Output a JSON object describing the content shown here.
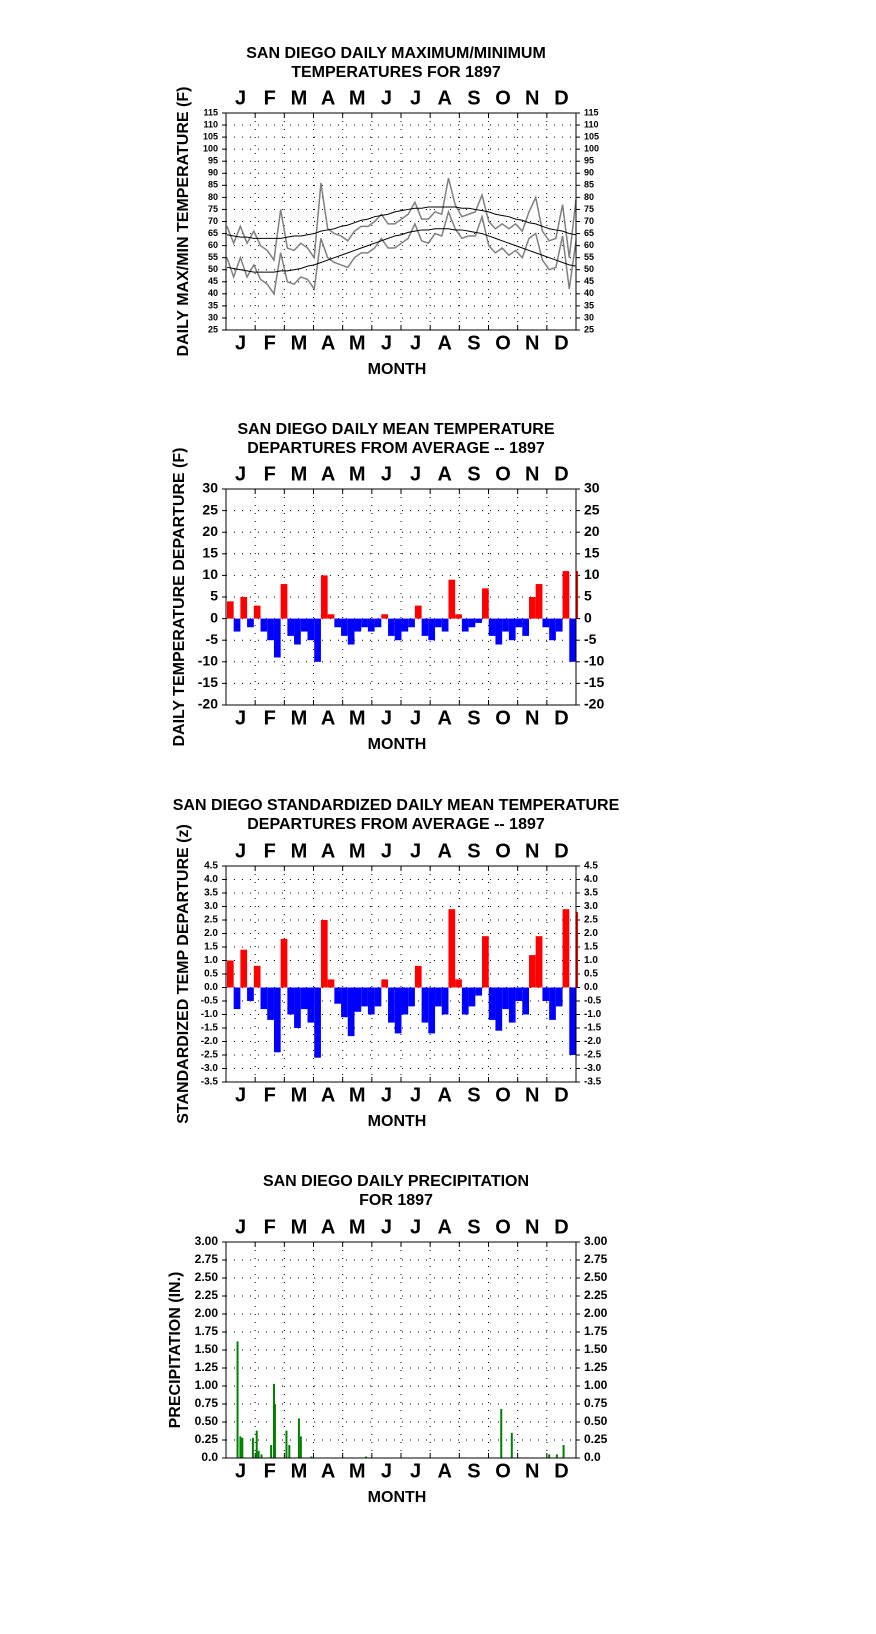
{
  "chart_data": [
    {
      "type": "line",
      "title": [
        "SAN DIEGO DAILY MAXIMUM/MINIMUM",
        "TEMPERATURES FOR 1897"
      ],
      "ylabel": "DAILY MAX/MIN TEMPERATURE (F)",
      "xlabel": "MONTH",
      "months": [
        "J",
        "F",
        "M",
        "A",
        "M",
        "J",
        "J",
        "A",
        "S",
        "O",
        "N",
        "D"
      ],
      "xlim": [
        0,
        365
      ],
      "x": [
        1,
        8,
        15,
        22,
        29,
        36,
        43,
        50,
        57,
        64,
        71,
        78,
        85,
        92,
        99,
        106,
        113,
        120,
        127,
        134,
        141,
        148,
        155,
        162,
        169,
        176,
        183,
        190,
        197,
        204,
        211,
        218,
        225,
        232,
        239,
        246,
        253,
        260,
        267,
        274,
        281,
        288,
        295,
        302,
        309,
        316,
        323,
        330,
        337,
        344,
        351,
        358,
        365
      ],
      "series": [
        {
          "color": "#808080",
          "values": [
            68,
            61,
            68,
            61,
            66,
            60,
            58,
            54,
            75,
            59,
            58,
            61,
            59,
            55,
            86,
            67,
            65,
            64,
            62,
            66,
            68,
            68,
            70,
            73,
            69,
            69,
            71,
            73,
            78,
            71,
            71,
            74,
            73,
            88,
            77,
            72,
            73,
            74,
            81,
            70,
            67,
            69,
            67,
            69,
            66,
            74,
            80,
            66,
            62,
            63,
            77,
            55,
            79
          ]
        },
        {
          "color": "#808080",
          "values": [
            55,
            47,
            55,
            47,
            52,
            46,
            44,
            40,
            57,
            45,
            44,
            47,
            46,
            42,
            63,
            55,
            53,
            52,
            51,
            55,
            57,
            57,
            59,
            63,
            59,
            59,
            61,
            63,
            69,
            62,
            61,
            65,
            64,
            74,
            67,
            63,
            64,
            64,
            72,
            60,
            57,
            59,
            56,
            58,
            55,
            63,
            65,
            54,
            50,
            51,
            64,
            42,
            62
          ]
        },
        {
          "color": "#000000",
          "values": [
            64.5,
            64,
            63.5,
            63.5,
            63,
            63,
            63,
            63,
            63,
            63.5,
            64,
            64,
            64.5,
            65,
            66,
            66.5,
            67,
            68,
            68.5,
            69.5,
            70.5,
            71,
            72,
            72.5,
            73,
            74,
            74.5,
            75,
            75.5,
            75.5,
            76,
            76,
            76,
            76,
            76,
            75.5,
            75.5,
            75,
            74.5,
            74,
            73,
            72.5,
            72,
            71,
            70.5,
            69.5,
            69,
            68,
            67,
            66.5,
            66,
            65,
            64.5
          ]
        },
        {
          "color": "#000000",
          "values": [
            51,
            50.5,
            50,
            49.5,
            49,
            49,
            49,
            49,
            49.5,
            49.5,
            50,
            50.5,
            51.5,
            52,
            53,
            54,
            55,
            56,
            57,
            58,
            59,
            60,
            61,
            62,
            63,
            64,
            64.5,
            65.5,
            66,
            66.5,
            66.5,
            67,
            67,
            67,
            66.5,
            66.5,
            66,
            65.5,
            65,
            64,
            63,
            62,
            61,
            60,
            59,
            58,
            57,
            56,
            55,
            54,
            53,
            52,
            51.5
          ]
        }
      ],
      "ylim": [
        25,
        115
      ],
      "yticks": [
        25,
        30,
        35,
        40,
        45,
        50,
        55,
        60,
        65,
        70,
        75,
        80,
        85,
        90,
        95,
        100,
        105,
        110,
        115
      ],
      "grid": true
    },
    {
      "type": "bar",
      "title": [
        "SAN DIEGO DAILY MEAN TEMPERATURE",
        "DEPARTURES FROM AVERAGE -- 1897"
      ],
      "ylabel": "DAILY TEMPERATURE DEPARTURE (F)",
      "xlabel": "MONTH",
      "months": [
        "J",
        "F",
        "M",
        "A",
        "M",
        "J",
        "J",
        "A",
        "S",
        "O",
        "N",
        "D"
      ],
      "xlim": [
        0,
        365
      ],
      "x": [
        1,
        8,
        15,
        22,
        29,
        36,
        43,
        50,
        57,
        64,
        71,
        78,
        85,
        92,
        99,
        106,
        113,
        120,
        127,
        134,
        141,
        148,
        155,
        162,
        169,
        176,
        183,
        190,
        197,
        204,
        211,
        218,
        225,
        232,
        239,
        246,
        253,
        260,
        267,
        274,
        281,
        288,
        295,
        302,
        309,
        316,
        323,
        330,
        337,
        344,
        351,
        358,
        365
      ],
      "values": [
        4,
        -3,
        5,
        -2,
        3,
        -3,
        -5,
        -9,
        8,
        -4,
        -6,
        -3,
        -5,
        -10,
        10,
        1,
        -2,
        -4,
        -6,
        -3,
        -2,
        -3,
        -2,
        1,
        -4,
        -5,
        -3,
        -2,
        3,
        -4,
        -5,
        -2,
        -3,
        9,
        1,
        -3,
        -2,
        -1,
        7,
        -4,
        -6,
        -3,
        -5,
        -2,
        -4,
        5,
        8,
        -2,
        -5,
        -3,
        11,
        -10,
        11
      ],
      "positive_color": "#ff0000",
      "negative_color": "#0000ff",
      "ylim": [
        -20,
        30
      ],
      "yticks": [
        -20,
        -15,
        -10,
        -5,
        0,
        5,
        10,
        15,
        20,
        25,
        30
      ],
      "grid": true
    },
    {
      "type": "bar",
      "title": [
        "SAN DIEGO STANDARDIZED DAILY MEAN TEMPERATURE",
        "DEPARTURES FROM AVERAGE -- 1897"
      ],
      "ylabel": "STANDARDIZED TEMP DEPARTURE (z)",
      "xlabel": "MONTH",
      "months": [
        "J",
        "F",
        "M",
        "A",
        "M",
        "J",
        "J",
        "A",
        "S",
        "O",
        "N",
        "D"
      ],
      "xlim": [
        0,
        365
      ],
      "x": [
        1,
        8,
        15,
        22,
        29,
        36,
        43,
        50,
        57,
        64,
        71,
        78,
        85,
        92,
        99,
        106,
        113,
        120,
        127,
        134,
        141,
        148,
        155,
        162,
        169,
        176,
        183,
        190,
        197,
        204,
        211,
        218,
        225,
        232,
        239,
        246,
        253,
        260,
        267,
        274,
        281,
        288,
        295,
        302,
        309,
        316,
        323,
        330,
        337,
        344,
        351,
        358,
        365
      ],
      "values": [
        1.0,
        -0.8,
        1.4,
        -0.5,
        0.8,
        -0.8,
        -1.2,
        -2.4,
        1.8,
        -1.0,
        -1.5,
        -0.8,
        -1.3,
        -2.6,
        2.5,
        0.3,
        -0.6,
        -1.1,
        -1.8,
        -0.9,
        -0.7,
        -1.0,
        -0.7,
        0.3,
        -1.3,
        -1.7,
        -1.0,
        -0.7,
        0.8,
        -1.3,
        -1.7,
        -0.7,
        -1.0,
        2.9,
        0.3,
        -1.0,
        -0.7,
        -0.3,
        1.9,
        -1.2,
        -1.6,
        -0.8,
        -1.3,
        -0.5,
        -1.0,
        1.2,
        1.9,
        -0.5,
        -1.2,
        -0.7,
        2.9,
        -2.5,
        2.8
      ],
      "positive_color": "#ff0000",
      "negative_color": "#0000ff",
      "ylim": [
        -3.5,
        4.5
      ],
      "yticks": [
        -3.5,
        {
          "value": -3,
          "label": "-3.0"
        },
        -2.5,
        {
          "value": -2,
          "label": "-2.0"
        },
        -1.5,
        {
          "value": -1,
          "label": "-1.0"
        },
        -0.5,
        {
          "value": 0,
          "label": "0.0"
        },
        0.5,
        {
          "value": 1,
          "label": "1.0"
        },
        1.5,
        {
          "value": 2,
          "label": "2.0"
        },
        2.5,
        {
          "value": 3,
          "label": "3.0"
        },
        3.5,
        {
          "value": 4,
          "label": "4.0"
        },
        4.5
      ],
      "grid": true
    },
    {
      "type": "bar",
      "title": [
        "SAN DIEGO DAILY PRECIPITATION",
        "FOR 1897"
      ],
      "ylabel": "PRECIPITATION (IN.)",
      "xlabel": "MONTH",
      "months": [
        "J",
        "F",
        "M",
        "A",
        "M",
        "J",
        "J",
        "A",
        "S",
        "O",
        "N",
        "D"
      ],
      "xlim": [
        0,
        365
      ],
      "x": [
        11,
        14,
        16,
        27,
        31,
        33,
        36,
        46,
        49,
        50,
        62,
        65,
        75,
        77,
        88,
        145,
        286,
        297,
        336,
        344,
        351
      ],
      "values": [
        1.62,
        0.3,
        0.28,
        0.28,
        0.38,
        0.1,
        0.05,
        0.18,
        1.03,
        0.75,
        0.38,
        0.18,
        0.55,
        0.3,
        0.02,
        0.02,
        0.68,
        0.35,
        0.05,
        0.05,
        0.18
      ],
      "color": "#008000",
      "ylim": [
        0,
        3
      ],
      "yticks": [
        {
          "value": 0,
          "label": "0.0"
        },
        {
          "value": 0.25,
          "label": "0.25"
        },
        {
          "value": 0.5,
          "label": "0.50"
        },
        {
          "value": 0.75,
          "label": "0.75"
        },
        {
          "value": 1,
          "label": "1.00"
        },
        {
          "value": 1.25,
          "label": "1.25"
        },
        {
          "value": 1.5,
          "label": "1.50"
        },
        {
          "value": 1.75,
          "label": "1.75"
        },
        {
          "value": 2,
          "label": "2.00"
        },
        {
          "value": 2.25,
          "label": "2.25"
        },
        {
          "value": 2.5,
          "label": "2.50"
        },
        {
          "value": 2.75,
          "label": "2.75"
        },
        {
          "value": 3,
          "label": "3.00"
        }
      ],
      "grid": true
    }
  ]
}
